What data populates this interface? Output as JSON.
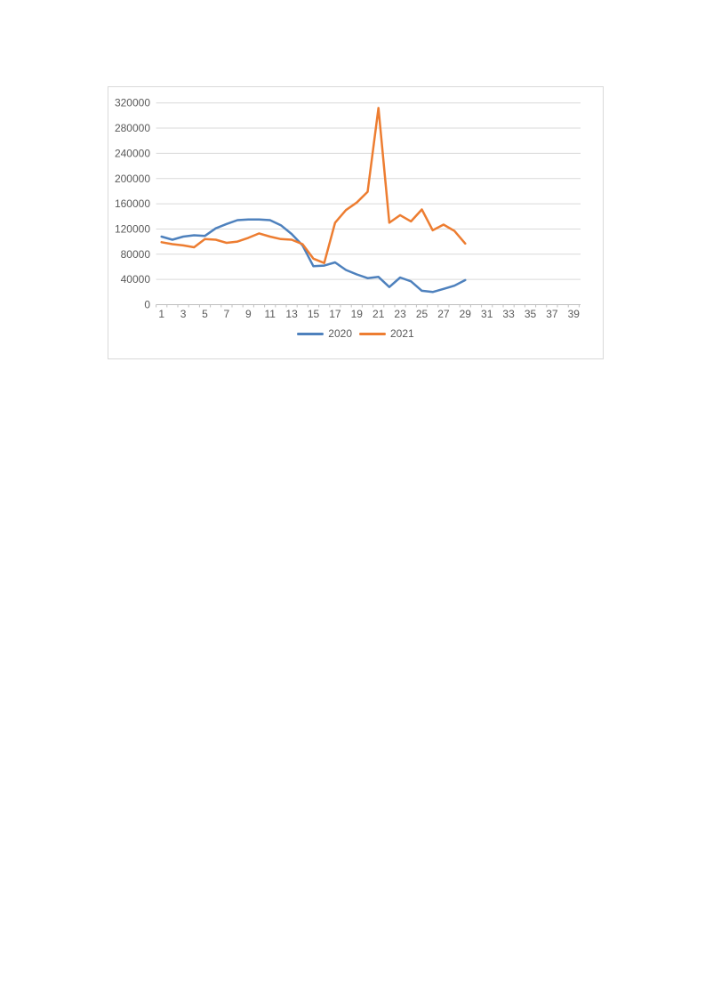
{
  "chart": {
    "background": "#FFFFFF",
    "border_color": "#D9D9D9",
    "grid_color": "#D9D9D9",
    "axis_color": "#BFBFBF",
    "text_color": "#595959"
  },
  "chart_data": {
    "type": "line",
    "title": "",
    "x": [
      1,
      2,
      3,
      4,
      5,
      6,
      7,
      8,
      9,
      10,
      11,
      12,
      13,
      14,
      15,
      16,
      17,
      18,
      19,
      20,
      21,
      22,
      23,
      24,
      25,
      26,
      27,
      28,
      29
    ],
    "series": [
      {
        "name": "2020",
        "color": "#4E81BD",
        "values": [
          108000,
          103000,
          108000,
          110000,
          109000,
          121000,
          128000,
          134000,
          135000,
          135000,
          134000,
          126000,
          112000,
          94000,
          61000,
          62000,
          67000,
          55000,
          48000,
          42000,
          44000,
          28000,
          43000,
          37000,
          22000,
          20000,
          25000,
          30000,
          39000
        ]
      },
      {
        "name": "2021",
        "color": "#ED7D31",
        "values": [
          99000,
          96000,
          94000,
          91000,
          104000,
          103000,
          98000,
          100000,
          106000,
          113000,
          108000,
          104000,
          103000,
          96000,
          73000,
          66000,
          130000,
          150000,
          162000,
          179000,
          312000,
          130000,
          142000,
          132000,
          151000,
          118000,
          127000,
          117000,
          97000
        ]
      }
    ],
    "x_axis": {
      "labels": [
        "1",
        "3",
        "5",
        "7",
        "9",
        "11",
        "13",
        "15",
        "17",
        "19",
        "21",
        "23",
        "25",
        "27",
        "29",
        "31",
        "33",
        "35",
        "37",
        "39"
      ],
      "max_units": 40
    },
    "y_axis": {
      "min": 0,
      "max": 320000,
      "step": 40000,
      "labels": [
        "0",
        "40000",
        "80000",
        "120000",
        "160000",
        "200000",
        "240000",
        "280000",
        "320000"
      ]
    },
    "legend": {
      "position": "bottom"
    },
    "grid": true
  }
}
